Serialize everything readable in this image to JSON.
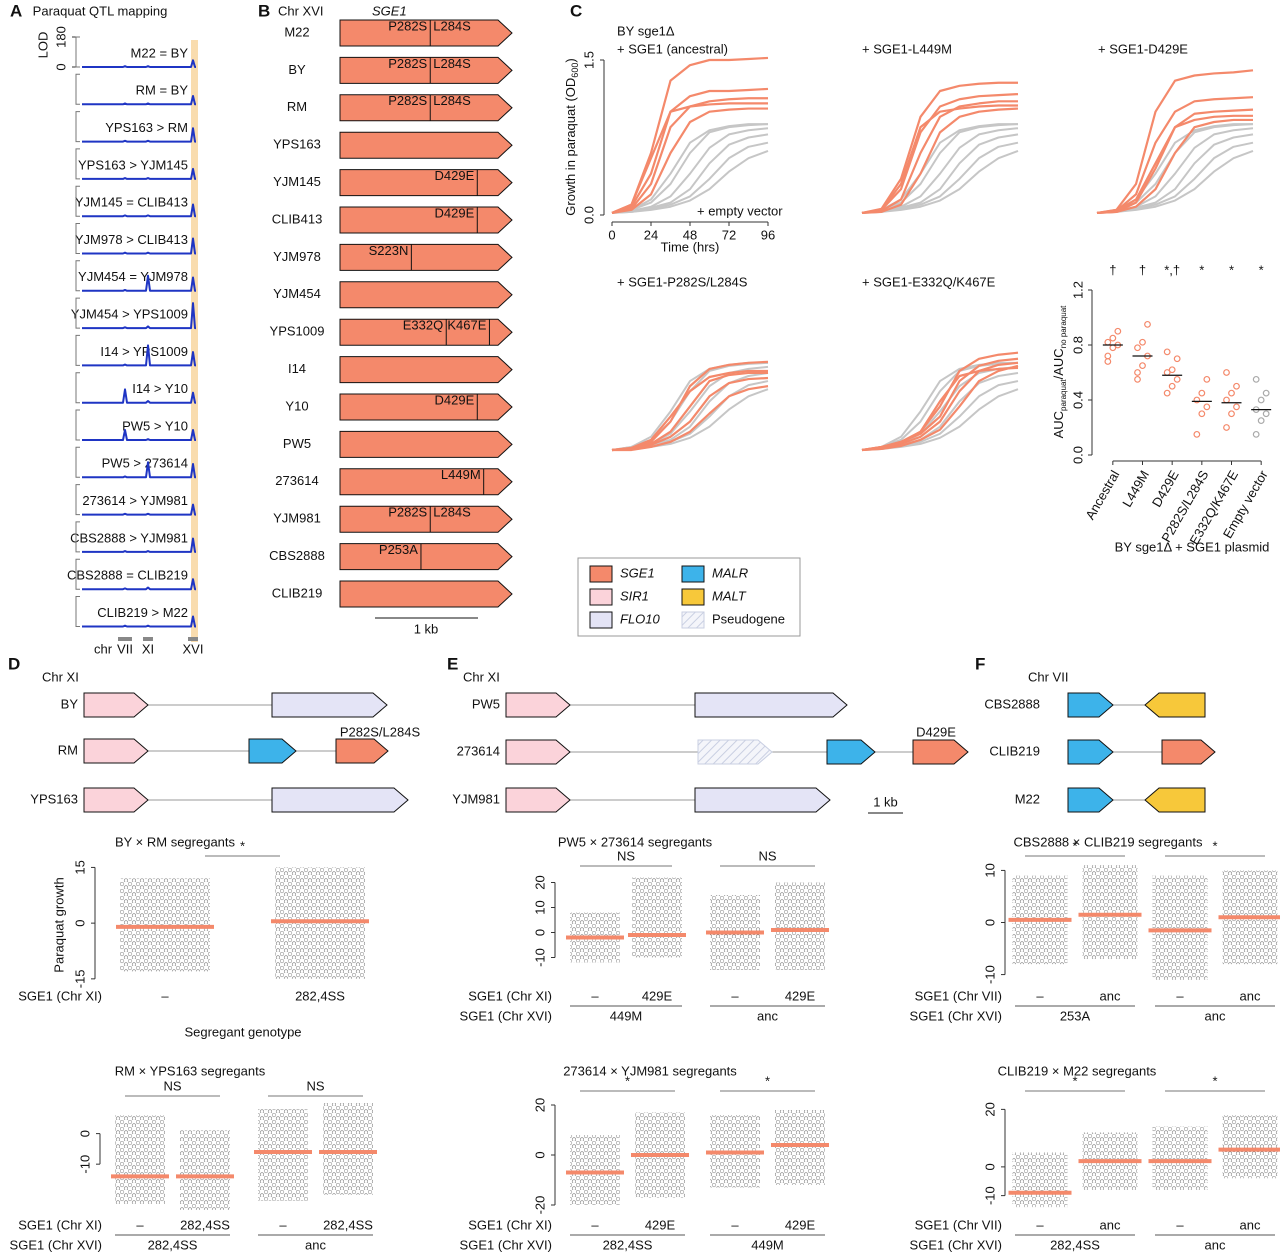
{
  "panel_labels": [
    "A",
    "B",
    "C",
    "D",
    "E",
    "F"
  ],
  "qtl": {
    "title": "Paraquat QTL mapping",
    "ylabel": "LOD",
    "ylim": [
      0,
      180
    ],
    "yticks": [
      0,
      180
    ],
    "color": "#1f35c4",
    "highlight": "#f9dcae",
    "chr_label": "chr",
    "loci": [
      "VII",
      "XI",
      "XVI"
    ],
    "rows": [
      {
        "label": "M22 = BY",
        "lod": [
          5,
          5,
          40
        ]
      },
      {
        "label": "RM = BY",
        "lod": [
          5,
          5,
          50
        ]
      },
      {
        "label": "YPS163 > RM",
        "lod": [
          5,
          5,
          80
        ]
      },
      {
        "label": "YPS163 > YJM145",
        "lod": [
          5,
          5,
          60
        ]
      },
      {
        "label": "YJM145 = CLIB413",
        "lod": [
          5,
          5,
          70
        ]
      },
      {
        "label": "YJM978 > CLIB413",
        "lod": [
          5,
          5,
          90
        ]
      },
      {
        "label": "YJM454 = YJM978",
        "lod": [
          5,
          90,
          80
        ]
      },
      {
        "label": "YJM454 > YPS1009",
        "lod": [
          5,
          10,
          150
        ]
      },
      {
        "label": "I14 > YPS1009",
        "lod": [
          5,
          120,
          80
        ]
      },
      {
        "label": "I14 > Y10",
        "lod": [
          80,
          10,
          60
        ]
      },
      {
        "label": "PW5 > Y10",
        "lod": [
          60,
          5,
          60
        ]
      },
      {
        "label": "PW5 > 273614",
        "lod": [
          5,
          90,
          80
        ]
      },
      {
        "label": "273614 > YJM981",
        "lod": [
          5,
          5,
          60
        ]
      },
      {
        "label": "CBS2888 > YJM981",
        "lod": [
          5,
          5,
          80
        ]
      },
      {
        "label": "CBS2888 = CLIB219",
        "lod": [
          5,
          10,
          60
        ]
      },
      {
        "label": "CLIB219 > M22",
        "lod": [
          5,
          5,
          60
        ]
      }
    ]
  },
  "sge1": {
    "chr": "Chr XVI",
    "gene": "SGE1",
    "color": "#f4896b",
    "scale": "1 kb",
    "strains": [
      {
        "name": "M22",
        "mutations": [
          "P282S",
          "L284S"
        ]
      },
      {
        "name": "BY",
        "mutations": [
          "P282S",
          "L284S"
        ]
      },
      {
        "name": "RM",
        "mutations": [
          "P282S",
          "L284S"
        ]
      },
      {
        "name": "YPS163",
        "mutations": []
      },
      {
        "name": "YJM145",
        "mutations": [
          "D429E"
        ]
      },
      {
        "name": "CLIB413",
        "mutations": [
          "D429E"
        ]
      },
      {
        "name": "YJM978",
        "mutations": [
          "S223N"
        ]
      },
      {
        "name": "YJM454",
        "mutations": []
      },
      {
        "name": "YPS1009",
        "mutations": [
          "E332Q",
          "K467E"
        ]
      },
      {
        "name": "I14",
        "mutations": []
      },
      {
        "name": "Y10",
        "mutations": [
          "D429E"
        ]
      },
      {
        "name": "PW5",
        "mutations": []
      },
      {
        "name": "273614",
        "mutations": [
          "L449M"
        ]
      },
      {
        "name": "YJM981",
        "mutations": [
          "P282S",
          "L284S"
        ]
      },
      {
        "name": "CBS2888",
        "mutations": [
          "P253A"
        ]
      },
      {
        "name": "CLIB219",
        "mutations": []
      }
    ]
  },
  "growth": {
    "title": "BY sge1Δ",
    "xlabel": "Time (hrs)",
    "ylabel": "Growth in paraquat (OD",
    "ylabel_sub": "600",
    "ylabel_end": ")",
    "x": [
      0,
      12,
      24,
      36,
      48,
      60,
      72,
      84,
      96
    ],
    "xlim": [
      0,
      96
    ],
    "xticks": [
      0,
      24,
      48,
      72,
      96
    ],
    "ylim": [
      0,
      1.5
    ],
    "yticks": [
      {
        "value": 0,
        "label": "0.0"
      },
      1.5
    ],
    "color": "#f4896b",
    "control": {
      "name": "+ empty vector",
      "color": "#c6c6c6",
      "curves": [
        [
          0.02,
          0.05,
          0.12,
          0.3,
          0.6,
          0.8,
          0.85,
          0.87,
          0.88
        ],
        [
          0.02,
          0.04,
          0.08,
          0.18,
          0.4,
          0.65,
          0.78,
          0.82,
          0.84
        ],
        [
          0.02,
          0.04,
          0.07,
          0.12,
          0.25,
          0.5,
          0.68,
          0.75,
          0.78
        ],
        [
          0.02,
          0.03,
          0.06,
          0.1,
          0.18,
          0.35,
          0.55,
          0.66,
          0.7
        ],
        [
          0.02,
          0.05,
          0.15,
          0.4,
          0.7,
          0.82,
          0.86,
          0.88,
          0.88
        ],
        [
          0.02,
          0.03,
          0.05,
          0.08,
          0.14,
          0.25,
          0.42,
          0.55,
          0.62
        ]
      ]
    },
    "panels": [
      {
        "title": "+ SGE1 (ancestral)",
        "curves": [
          [
            0.02,
            0.1,
            0.6,
            1.3,
            1.45,
            1.5,
            1.5,
            1.51,
            1.52
          ],
          [
            0.02,
            0.08,
            0.4,
            1.0,
            1.15,
            1.2,
            1.2,
            1.21,
            1.22
          ],
          [
            0.02,
            0.06,
            0.3,
            0.85,
            1.05,
            1.1,
            1.12,
            1.13,
            1.13
          ],
          [
            0.02,
            0.1,
            0.55,
            1.0,
            1.05,
            1.07,
            1.08,
            1.08,
            1.08
          ],
          [
            0.02,
            0.05,
            0.2,
            0.6,
            0.9,
            1.0,
            1.02,
            1.03,
            1.03
          ]
        ]
      },
      {
        "title": "+ SGE1-L449M",
        "curves": [
          [
            0.02,
            0.06,
            0.35,
            0.95,
            1.2,
            1.25,
            1.27,
            1.28,
            1.28
          ],
          [
            0.02,
            0.05,
            0.25,
            0.8,
            1.05,
            1.12,
            1.15,
            1.16,
            1.17
          ],
          [
            0.02,
            0.04,
            0.15,
            0.6,
            0.95,
            1.05,
            1.08,
            1.1,
            1.1
          ],
          [
            0.02,
            0.05,
            0.3,
            0.85,
            1.0,
            1.03,
            1.05,
            1.06,
            1.06
          ],
          [
            0.02,
            0.03,
            0.1,
            0.4,
            0.8,
            0.95,
            1.0,
            1.02,
            1.03
          ]
        ]
      },
      {
        "title": "+ SGE1-D429E",
        "curves": [
          [
            0.02,
            0.05,
            0.3,
            1.0,
            1.3,
            1.35,
            1.37,
            1.38,
            1.4
          ],
          [
            0.02,
            0.04,
            0.2,
            0.7,
            1.0,
            1.1,
            1.12,
            1.13,
            1.14
          ],
          [
            0.02,
            0.03,
            0.12,
            0.45,
            0.85,
            0.98,
            1.0,
            1.01,
            1.02
          ],
          [
            0.02,
            0.04,
            0.15,
            0.5,
            0.85,
            0.92,
            0.95,
            0.96,
            0.96
          ],
          [
            0.02,
            0.03,
            0.08,
            0.25,
            0.6,
            0.85,
            0.9,
            0.92,
            0.92
          ]
        ]
      },
      {
        "title": "+ SGE1-P282S/L284S",
        "curves": [
          [
            0.02,
            0.04,
            0.1,
            0.3,
            0.65,
            0.82,
            0.86,
            0.88,
            0.89
          ],
          [
            0.02,
            0.04,
            0.12,
            0.35,
            0.6,
            0.74,
            0.78,
            0.8,
            0.8
          ],
          [
            0.02,
            0.03,
            0.08,
            0.2,
            0.45,
            0.7,
            0.76,
            0.78,
            0.78
          ],
          [
            0.02,
            0.03,
            0.07,
            0.15,
            0.3,
            0.55,
            0.68,
            0.72,
            0.73
          ],
          [
            0.02,
            0.02,
            0.05,
            0.1,
            0.2,
            0.38,
            0.55,
            0.62,
            0.65
          ]
        ]
      },
      {
        "title": "+ SGE1-E332Q/K467E",
        "curves": [
          [
            0.02,
            0.05,
            0.1,
            0.2,
            0.45,
            0.8,
            0.92,
            0.96,
            0.98
          ],
          [
            0.02,
            0.05,
            0.1,
            0.18,
            0.35,
            0.7,
            0.85,
            0.9,
            0.92
          ],
          [
            0.02,
            0.04,
            0.08,
            0.15,
            0.3,
            0.6,
            0.8,
            0.86,
            0.88
          ],
          [
            0.02,
            0.04,
            0.09,
            0.2,
            0.5,
            0.75,
            0.8,
            0.82,
            0.83
          ],
          [
            0.02,
            0.03,
            0.06,
            0.12,
            0.22,
            0.45,
            0.7,
            0.8,
            0.85
          ]
        ]
      }
    ]
  },
  "auc": {
    "ylabel": "AUC",
    "ylabel_sub1": "paraquat",
    "ylabel_mid": "/AUC",
    "ylabel_sub2": "no paraquat",
    "xlabel": "BY sge1Δ + SGE1 plasmid",
    "ylim": [
      0,
      1.2
    ],
    "yticks": [
      {
        "value": 0,
        "label": "0.0"
      },
      0.4,
      0.8,
      1.2
    ],
    "categories": [
      "Ancestral",
      "L449M",
      "D429E",
      "P282S/L284S",
      "E332Q/K467E",
      "Empty vector"
    ],
    "means": [
      0.8,
      0.72,
      0.58,
      0.39,
      0.38,
      0.33
    ],
    "significance": [
      "†",
      "†",
      "*,†",
      "*",
      "*",
      "*"
    ],
    "point_colors": [
      "#f4896b",
      "#f4896b",
      "#f4896b",
      "#f4896b",
      "#f4896b",
      "#aaaaaa"
    ],
    "points": [
      [
        0.72,
        0.78,
        0.8,
        0.82,
        0.85,
        0.9,
        0.68
      ],
      [
        0.6,
        0.65,
        0.72,
        0.78,
        0.82,
        0.95,
        0.55
      ],
      [
        0.45,
        0.5,
        0.55,
        0.6,
        0.62,
        0.7,
        0.75
      ],
      [
        0.15,
        0.3,
        0.35,
        0.4,
        0.45,
        0.55
      ],
      [
        0.2,
        0.3,
        0.35,
        0.4,
        0.45,
        0.5,
        0.6
      ],
      [
        0.15,
        0.25,
        0.3,
        0.33,
        0.4,
        0.45,
        0.55
      ]
    ]
  },
  "legend": [
    {
      "name": "SGE1",
      "color": "#f4896b"
    },
    {
      "name": "SIR1",
      "color": "#fbd3da"
    },
    {
      "name": "FLO10",
      "color": "#e4e4f6"
    },
    {
      "name": "MALR",
      "color": "#3db3ea"
    },
    {
      "name": "MALT",
      "color": "#f7c83a"
    },
    {
      "name": "Pseudogene",
      "color": "#c9cfe2",
      "hatched": true
    }
  ],
  "loci_panels": [
    {
      "chr": "Chr XI",
      "strains": [
        {
          "name": "BY"
        },
        {
          "name": "RM",
          "mutation": "P282S/L284S"
        },
        {
          "name": "YPS163"
        }
      ]
    },
    {
      "chr": "Chr XI",
      "strains": [
        {
          "name": "PW5"
        },
        {
          "name": "273614",
          "mutation": "D429E"
        },
        {
          "name": "YJM981"
        }
      ],
      "scale": "1 kb"
    },
    {
      "chr": "Chr VII",
      "strains": [
        {
          "name": "CBS2888"
        },
        {
          "name": "CLIB219"
        },
        {
          "name": "M22"
        }
      ]
    }
  ],
  "strip_charts": [
    {
      "title": "BY × RM segregants",
      "ylabel": "Paraquat growth",
      "xlabel": "Segregant genotype",
      "ylim": [
        -18,
        17
      ],
      "yticks": [
        -15,
        0,
        15
      ],
      "groups": [
        {
          "mean": -1,
          "range": [
            -13,
            12
          ]
        },
        {
          "mean": 0.5,
          "range": [
            -15,
            15
          ]
        }
      ],
      "brackets": [
        "*"
      ],
      "rows": [
        {
          "name": "SGE1 (Chr XI)",
          "labels": [
            "–",
            "282,4SS"
          ]
        }
      ]
    },
    {
      "title": "RM × YPS163 segregants",
      "ylim": [
        -25,
        11
      ],
      "yticks": [
        -10,
        0
      ],
      "groups": [
        {
          "mean": -14,
          "range": [
            -23,
            6
          ]
        },
        {
          "mean": -14,
          "range": [
            -25,
            1
          ]
        },
        {
          "mean": -6,
          "range": [
            -22,
            8
          ]
        },
        {
          "mean": -6,
          "range": [
            -20,
            10
          ]
        }
      ],
      "brackets": [
        "NS",
        "NS"
      ],
      "rows": [
        {
          "name": "SGE1 (Chr XI)",
          "labels": [
            "–",
            "282,4SS",
            "–",
            "282,4SS"
          ]
        },
        {
          "name": "SGE1 (Chr XVI)",
          "labels": [
            "282,4SS",
            "anc"
          ]
        }
      ]
    },
    {
      "title": "PW5 × 273614 segregants",
      "ylim": [
        -21,
        25
      ],
      "yticks": [
        -10,
        0,
        10,
        20
      ],
      "groups": [
        {
          "mean": -2,
          "range": [
            -12,
            8
          ]
        },
        {
          "mean": -1,
          "range": [
            -10,
            22
          ]
        },
        {
          "mean": 0,
          "range": [
            -15,
            15
          ]
        },
        {
          "mean": 1,
          "range": [
            -15,
            20
          ]
        }
      ],
      "brackets": [
        "NS",
        "NS"
      ],
      "rows": [
        {
          "name": "SGE1 (Chr XI)",
          "labels": [
            "–",
            "429E",
            "–",
            "429E"
          ]
        },
        {
          "name": "SGE1 (Chr XVI)",
          "labels": [
            "449M",
            "anc"
          ]
        }
      ]
    },
    {
      "title": "273614 × YJM981 segregants",
      "ylim": [
        -22,
        24
      ],
      "yticks": [
        -20,
        0,
        20
      ],
      "groups": [
        {
          "mean": -7,
          "range": [
            -20,
            8
          ]
        },
        {
          "mean": 0,
          "range": [
            -17,
            17
          ]
        },
        {
          "mean": 1,
          "range": [
            -13,
            16
          ]
        },
        {
          "mean": 4,
          "range": [
            -12,
            18
          ]
        }
      ],
      "brackets": [
        "*",
        "*"
      ],
      "rows": [
        {
          "name": "SGE1 (Chr XI)",
          "labels": [
            "–",
            "429E",
            "–",
            "429E"
          ]
        },
        {
          "name": "SGE1 (Chr XVI)",
          "labels": [
            "282,4SS",
            "449M"
          ]
        }
      ]
    },
    {
      "title": "CBS2888 × CLIB219 segregants",
      "ylim": [
        -12,
        12
      ],
      "yticks": [
        -10,
        0,
        10
      ],
      "groups": [
        {
          "mean": 0.5,
          "range": [
            -8,
            9
          ]
        },
        {
          "mean": 1.5,
          "range": [
            -7,
            11
          ]
        },
        {
          "mean": -1.5,
          "range": [
            -11,
            9
          ]
        },
        {
          "mean": 1,
          "range": [
            -8,
            10
          ]
        }
      ],
      "brackets": [
        "*",
        "*"
      ],
      "rows": [
        {
          "name": "SGE1 (Chr VII)",
          "labels": [
            "–",
            "anc",
            "–",
            "anc"
          ]
        },
        {
          "name": "SGE1 (Chr XVI)",
          "labels": [
            "253A",
            "anc"
          ]
        }
      ]
    },
    {
      "title": "CLIB219 × M22 segregants",
      "ylim": [
        -15,
        25
      ],
      "yticks": [
        -10,
        0,
        20
      ],
      "groups": [
        {
          "mean": -9,
          "range": [
            -14,
            5
          ]
        },
        {
          "mean": 2,
          "range": [
            -8,
            12
          ]
        },
        {
          "mean": 2,
          "range": [
            -8,
            14
          ]
        },
        {
          "mean": 6,
          "range": [
            -4,
            18
          ]
        }
      ],
      "brackets": [
        "*",
        "*"
      ],
      "rows": [
        {
          "name": "SGE1 (Chr VII)",
          "labels": [
            "–",
            "anc",
            "–",
            "anc"
          ]
        },
        {
          "name": "SGE1 (Chr XVI)",
          "labels": [
            "282,4SS",
            "anc"
          ]
        }
      ]
    }
  ]
}
